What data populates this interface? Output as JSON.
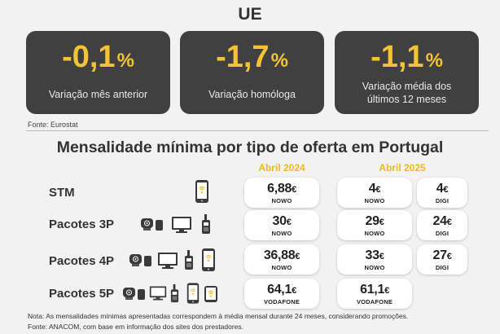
{
  "eu": {
    "title": "UE",
    "cards": [
      {
        "value": "-0,1",
        "unit": "%",
        "label": "Variação mês anterior"
      },
      {
        "value": "-1,7",
        "unit": "%",
        "label": "Variação homóloga"
      },
      {
        "value": "-1,1",
        "unit": "%",
        "label_line1": "Variação média dos",
        "label_line2": "últimos 12 meses"
      }
    ],
    "source": "Fonte: Eurostat"
  },
  "portugal": {
    "title": "Mensalidade mínima por tipo de oferta em Portugal",
    "years": [
      "Abril 2024",
      "Abril 2025"
    ],
    "rows": [
      {
        "label": "STM",
        "cells": [
          {
            "amount": "6,88",
            "currency": "€",
            "operator": "NOWO"
          },
          {
            "amount": "4",
            "currency": "€",
            "operator": "NOWO"
          },
          {
            "amount": "4",
            "currency": "€",
            "operator": "DIGI"
          }
        ]
      },
      {
        "label": "Pacotes 3P",
        "cells": [
          {
            "amount": "30",
            "currency": "€",
            "operator": "NOWO"
          },
          {
            "amount": "29",
            "currency": "€",
            "operator": "NOWO"
          },
          {
            "amount": "24",
            "currency": "€",
            "operator": "DIGI"
          }
        ]
      },
      {
        "label": "Pacotes 4P",
        "cells": [
          {
            "amount": "36,88",
            "currency": "€",
            "operator": "NOWO"
          },
          {
            "amount": "33",
            "currency": "€",
            "operator": "NOWO"
          },
          {
            "amount": "27",
            "currency": "€",
            "operator": "DIGI"
          }
        ]
      },
      {
        "label": "Pacotes 5P",
        "cells": [
          {
            "amount": "64,1",
            "currency": "€",
            "operator": "VODAFONE"
          },
          {
            "amount": "61,1",
            "currency": "€",
            "operator": "VODAFONE"
          }
        ]
      }
    ],
    "icons": [
      "mobile-phone-icon",
      "fixed-internet-icon",
      "television-icon",
      "fixed-phone-icon"
    ],
    "note": "Nota: As mensalidades mínimas apresentadas correspondem à média mensal durante 24 meses, considerando promoções.",
    "source": "Fonte: ANACOM, com base  em informação dos sites dos prestadores."
  },
  "colors": {
    "accent": "#f2c335",
    "card_bg": "#404040",
    "year_color": "#f2b915"
  }
}
